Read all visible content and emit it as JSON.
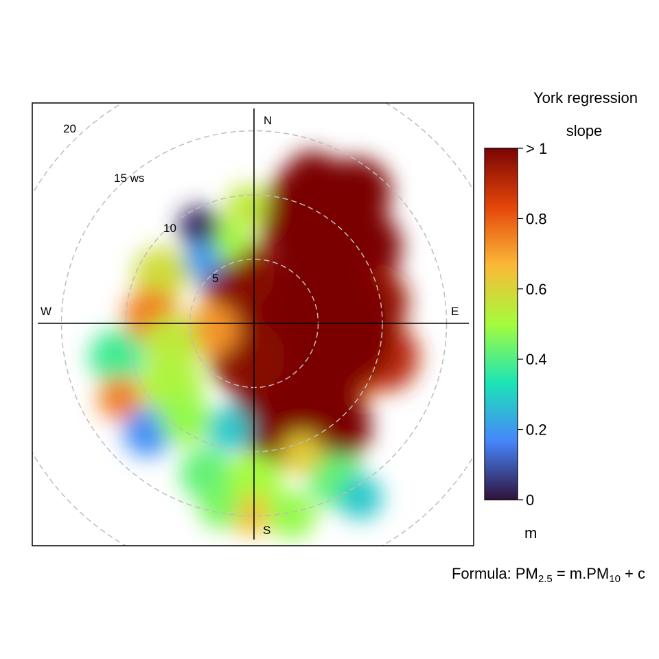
{
  "chart_data": {
    "type": "heatmap",
    "subtype": "polar",
    "compass": [
      "N",
      "E",
      "S",
      "W"
    ],
    "radial_ticks": [
      {
        "value": 5,
        "label": "5"
      },
      {
        "value": 10,
        "label": "10"
      },
      {
        "value": 15,
        "label": "15 ws"
      },
      {
        "value": 20,
        "label": "20"
      }
    ],
    "radial_max": 20,
    "colorbar": {
      "title_line1": "York regression",
      "title_line2": "slope",
      "unit": "m",
      "range": [
        0,
        1
      ],
      "ticks": [
        {
          "value": 0,
          "label": "0"
        },
        {
          "value": 0.2,
          "label": "0.2"
        },
        {
          "value": 0.4,
          "label": "0.4"
        },
        {
          "value": 0.6,
          "label": "0.6"
        },
        {
          "value": 0.8,
          "label": "0.8"
        },
        {
          "value": 1,
          "label": "> 1"
        }
      ],
      "colors": [
        "#30123b",
        "#4686fb",
        "#1be5b5",
        "#a4fc3c",
        "#fbb938",
        "#e4460a",
        "#7a0403"
      ]
    },
    "formula": {
      "prefix": "Formula: PM",
      "sub1": "2.5",
      "middle": " = m.PM",
      "sub2": "10",
      "suffix": " + c"
    },
    "grid": true,
    "legend_position": "right"
  }
}
